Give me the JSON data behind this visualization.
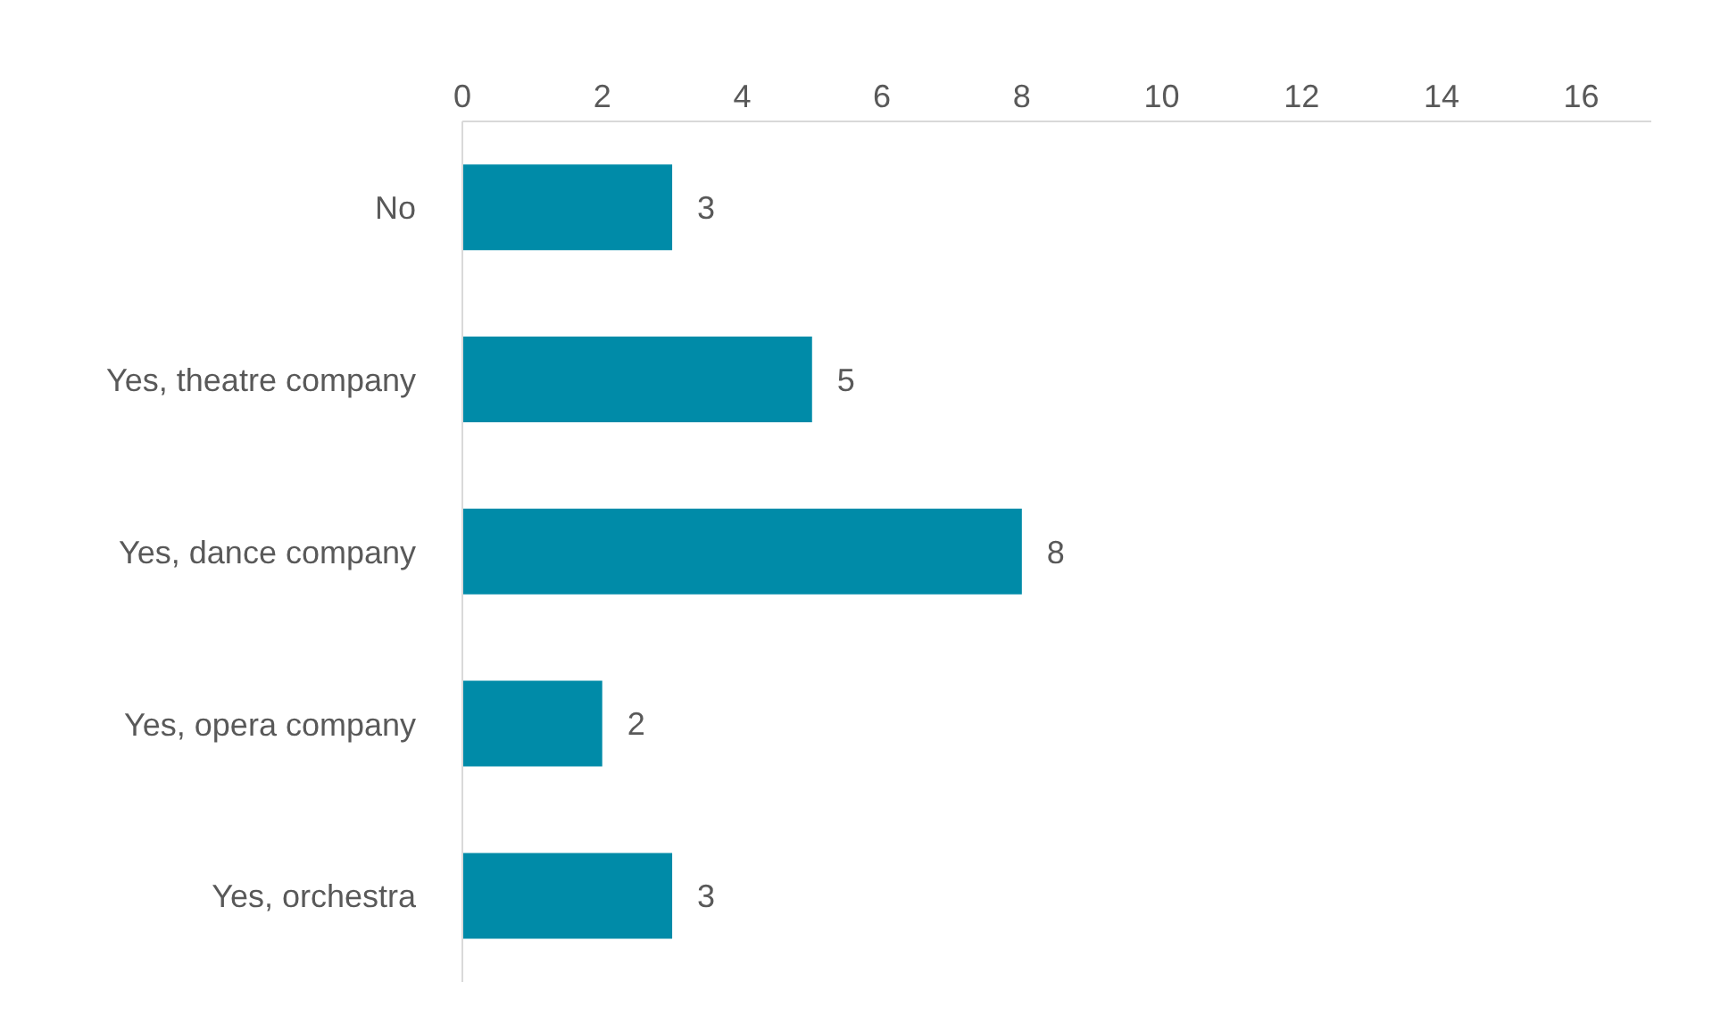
{
  "chart_data": {
    "type": "bar",
    "orientation": "horizontal",
    "categories": [
      "No",
      "Yes, theatre company",
      "Yes, dance company",
      "Yes, opera company",
      "Yes, orchestra"
    ],
    "values": [
      3,
      5,
      8,
      2,
      3
    ],
    "color": "#008ba8",
    "xlim": [
      0,
      17
    ],
    "xticks": [
      0,
      2,
      4,
      6,
      8,
      10,
      12,
      14,
      16
    ],
    "data_labels": true
  }
}
